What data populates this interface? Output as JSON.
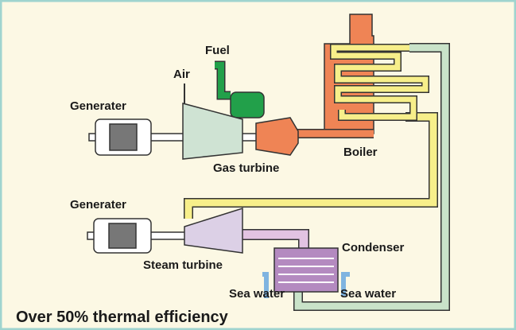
{
  "labels": {
    "fuel": "Fuel",
    "air": "Air",
    "generator_1": "Generater",
    "gas_turbine": "Gas turbine",
    "boiler": "Boiler",
    "generator_2": "Generater",
    "steam_turbine": "Steam turbine",
    "condenser": "Condenser",
    "sea_water_in": "Sea water",
    "sea_water_out": "Sea water"
  },
  "caption": "Over 50% thermal efficiency"
}
